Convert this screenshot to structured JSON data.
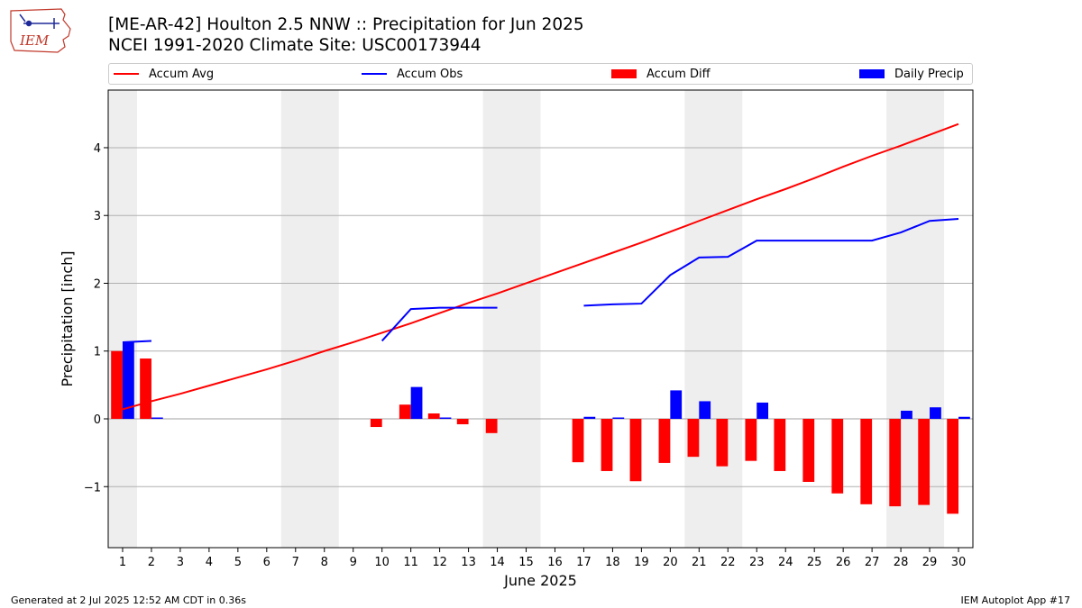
{
  "header": {
    "title_line1": "[ME-AR-42] Houlton 2.5 NNW :: Precipitation for Jun 2025",
    "title_line2": "NCEI 1991-2020 Climate Site: USC00173944",
    "logo_text": "IEM"
  },
  "footer": {
    "left": "Generated at 2 Jul 2025 12:52 AM CDT in 0.36s",
    "right": "IEM Autoplot App #17"
  },
  "legend": {
    "items": [
      {
        "label": "Accum Avg",
        "kind": "line",
        "color": "#ff0000"
      },
      {
        "label": "Accum Obs",
        "kind": "line",
        "color": "#0000ff"
      },
      {
        "label": "Accum Diff",
        "kind": "bar",
        "color": "#ff0000"
      },
      {
        "label": "Daily Precip",
        "kind": "bar",
        "color": "#0000ff"
      }
    ]
  },
  "chart_data": {
    "type": "bar",
    "xlabel": "June 2025",
    "ylabel": "Precipitation [inch]",
    "xlim": [
      0.5,
      30.5
    ],
    "ylim": [
      -1.9,
      4.85
    ],
    "yticks": [
      -1,
      0,
      1,
      2,
      3,
      4
    ],
    "ytick_labels": [
      "−1",
      "0",
      "1",
      "2",
      "3",
      "4"
    ],
    "days": [
      1,
      2,
      3,
      4,
      5,
      6,
      7,
      8,
      9,
      10,
      11,
      12,
      13,
      14,
      15,
      16,
      17,
      18,
      19,
      20,
      21,
      22,
      23,
      24,
      25,
      26,
      27,
      28,
      29,
      30
    ],
    "weekend_shading": [
      [
        0.5,
        1.5
      ],
      [
        6.5,
        8.5
      ],
      [
        13.5,
        15.5
      ],
      [
        20.5,
        22.5
      ],
      [
        27.5,
        29.5
      ]
    ],
    "grid": "horizontal",
    "series": [
      {
        "name": "Accum Avg",
        "type": "line",
        "color": "#ff0000",
        "x": [
          1,
          2,
          3,
          4,
          5,
          6,
          7,
          8,
          9,
          10,
          11,
          12,
          13,
          14,
          15,
          16,
          17,
          18,
          19,
          20,
          21,
          22,
          23,
          24,
          25,
          26,
          27,
          28,
          29,
          30
        ],
        "values": [
          0.14,
          0.26,
          0.37,
          0.49,
          0.61,
          0.73,
          0.86,
          1.0,
          1.13,
          1.27,
          1.41,
          1.56,
          1.71,
          1.85,
          2.0,
          2.15,
          2.3,
          2.45,
          2.6,
          2.76,
          2.92,
          3.08,
          3.24,
          3.39,
          3.55,
          3.72,
          3.88,
          4.03,
          4.19,
          4.35
        ]
      },
      {
        "name": "Accum Obs",
        "type": "line",
        "color": "#0000ff",
        "segments": [
          {
            "x": [
              1,
              2
            ],
            "values": [
              1.13,
              1.15
            ]
          },
          {
            "x": [
              10,
              11,
              12,
              13,
              14
            ],
            "values": [
              1.15,
              1.62,
              1.64,
              1.64,
              1.64
            ]
          },
          {
            "x": [
              17,
              18,
              19,
              20,
              21,
              22,
              23,
              24,
              25,
              26,
              27,
              28,
              29,
              30
            ],
            "values": [
              1.67,
              1.69,
              1.7,
              2.12,
              2.38,
              2.39,
              2.63,
              2.63,
              2.63,
              2.63,
              2.63,
              2.75,
              2.92,
              2.95
            ]
          }
        ]
      },
      {
        "name": "Accum Diff",
        "type": "bar",
        "color": "#ff0000",
        "offset": -0.2,
        "x": [
          1,
          2,
          10,
          11,
          12,
          13,
          14,
          17,
          18,
          19,
          20,
          21,
          22,
          23,
          24,
          25,
          26,
          27,
          28,
          29,
          30
        ],
        "values": [
          1.0,
          0.89,
          -0.12,
          0.21,
          0.08,
          -0.08,
          -0.21,
          -0.64,
          -0.77,
          -0.92,
          -0.65,
          -0.56,
          -0.7,
          -0.62,
          -0.77,
          -0.93,
          -1.1,
          -1.26,
          -1.29,
          -1.27,
          -1.4
        ]
      },
      {
        "name": "Daily Precip",
        "type": "bar",
        "color": "#0000ff",
        "offset": 0.2,
        "x": [
          1,
          2,
          11,
          12,
          17,
          18,
          20,
          21,
          23,
          28,
          29,
          30
        ],
        "values": [
          1.13,
          0.02,
          0.47,
          0.02,
          0.03,
          0.02,
          0.42,
          0.26,
          0.24,
          0.12,
          0.17,
          0.03
        ]
      }
    ]
  }
}
